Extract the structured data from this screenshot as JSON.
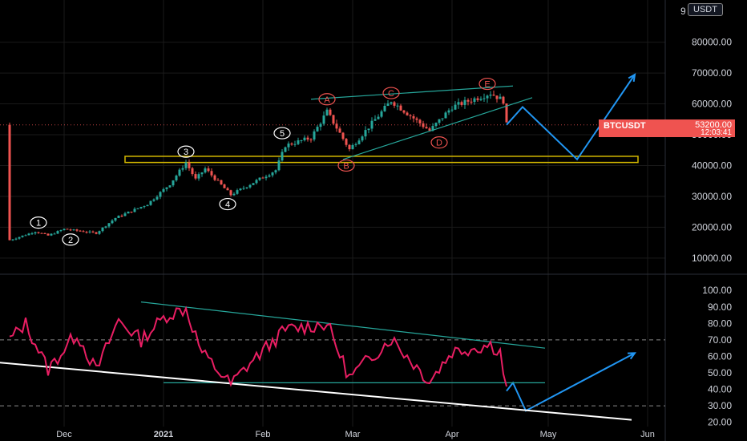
{
  "instrument": "BTCUSDT",
  "unit": "USDT",
  "last_price": "53200.00",
  "countdown": "12:03:41",
  "colors": {
    "up": "#26a69a",
    "down": "#ef5350",
    "rsi": "#e91e63",
    "trendline": "#26a69a",
    "projection": "#2196f3",
    "zone": "#d4b800"
  },
  "chart_data": [
    {
      "type": "candlestick",
      "price_axis": {
        "ticks": [
          "80000.00",
          "70000.00",
          "60000.00",
          "50000.00",
          "40000.00",
          "30000.00",
          "20000.00",
          "10000.00"
        ],
        "top_partial": "9"
      },
      "time_axis": [
        "Dec",
        "2021",
        "Feb",
        "Mar",
        "Apr",
        "May",
        "Jun"
      ],
      "wave_labels": [
        "1",
        "2",
        "3",
        "4",
        "5",
        "A",
        "B",
        "C",
        "D",
        "E"
      ],
      "support_zone": [
        41000,
        43000
      ],
      "price_path": [
        {
          "date": "2020-11-14",
          "close": 15800
        },
        {
          "date": "2020-11-22",
          "close": 18600
        },
        {
          "date": "2020-11-26",
          "close": 17300
        },
        {
          "date": "2020-12-01",
          "close": 19400
        },
        {
          "date": "2020-12-11",
          "close": 18100
        },
        {
          "date": "2020-12-17",
          "close": 23000
        },
        {
          "date": "2020-12-27",
          "close": 27500
        },
        {
          "date": "2021-01-03",
          "close": 34000
        },
        {
          "date": "2021-01-08",
          "close": 41000
        },
        {
          "date": "2021-01-11",
          "close": 35500
        },
        {
          "date": "2021-01-14",
          "close": 39000
        },
        {
          "date": "2021-01-22",
          "close": 30500
        },
        {
          "date": "2021-01-29",
          "close": 34500
        },
        {
          "date": "2021-02-05",
          "close": 38500
        },
        {
          "date": "2021-02-08",
          "close": 46500
        },
        {
          "date": "2021-02-16",
          "close": 49000
        },
        {
          "date": "2021-02-21",
          "close": 57500
        },
        {
          "date": "2021-02-28",
          "close": 45200
        },
        {
          "date": "2021-03-13",
          "close": 61000
        },
        {
          "date": "2021-03-25",
          "close": 51300
        },
        {
          "date": "2021-04-01",
          "close": 59000
        },
        {
          "date": "2021-04-13",
          "close": 63500
        },
        {
          "date": "2021-04-17",
          "close": 61000
        },
        {
          "date": "2021-04-18",
          "close": 53200
        }
      ],
      "projection": [
        {
          "date": "2021-04-18",
          "price": 53200
        },
        {
          "date": "2021-04-23",
          "price": 59000
        },
        {
          "date": "2021-05-10",
          "price": 42000
        },
        {
          "date": "2021-05-28",
          "price": 69500
        }
      ]
    },
    {
      "type": "line",
      "name": "RSI",
      "y_ticks": [
        "100.00",
        "90.00",
        "80.00",
        "70.00",
        "60.00",
        "50.00",
        "40.00",
        "30.00",
        "20.00"
      ],
      "levels": [
        70,
        30
      ],
      "series": [
        {
          "date": "2020-11-14",
          "value": 70
        },
        {
          "date": "2020-11-19",
          "value": 80
        },
        {
          "date": "2020-11-26",
          "value": 52
        },
        {
          "date": "2020-12-05",
          "value": 74
        },
        {
          "date": "2020-12-11",
          "value": 51
        },
        {
          "date": "2020-12-18",
          "value": 82
        },
        {
          "date": "2020-12-25",
          "value": 70
        },
        {
          "date": "2021-01-02",
          "value": 85
        },
        {
          "date": "2021-01-08",
          "value": 89
        },
        {
          "date": "2021-01-13",
          "value": 62
        },
        {
          "date": "2021-01-22",
          "value": 43
        },
        {
          "date": "2021-01-28",
          "value": 56
        },
        {
          "date": "2021-02-08",
          "value": 76
        },
        {
          "date": "2021-02-21",
          "value": 80
        },
        {
          "date": "2021-02-28",
          "value": 47
        },
        {
          "date": "2021-03-13",
          "value": 71
        },
        {
          "date": "2021-03-25",
          "value": 45
        },
        {
          "date": "2021-04-01",
          "value": 63
        },
        {
          "date": "2021-04-13",
          "value": 67
        },
        {
          "date": "2021-04-16",
          "value": 63
        },
        {
          "date": "2021-04-18",
          "value": 39
        }
      ],
      "projection": [
        {
          "date": "2021-04-18",
          "value": 39
        },
        {
          "date": "2021-04-20",
          "value": 44
        },
        {
          "date": "2021-04-24",
          "value": 27
        },
        {
          "date": "2021-05-28",
          "value": 62
        }
      ]
    }
  ]
}
